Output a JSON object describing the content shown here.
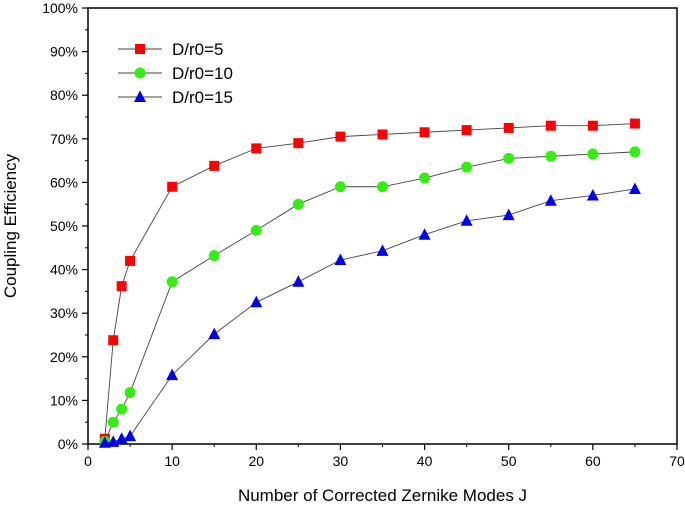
{
  "chart_data": {
    "type": "line",
    "xlabel": "Number of Corrected Zernike Modes J",
    "ylabel": "Coupling Efficiency",
    "xlim": [
      0,
      70
    ],
    "ylim": [
      0,
      100
    ],
    "xticks": [
      0,
      10,
      20,
      30,
      40,
      50,
      60,
      70
    ],
    "yticks": [
      0,
      10,
      20,
      30,
      40,
      50,
      60,
      70,
      80,
      90,
      100
    ],
    "ytick_suffix": "%",
    "grid": false,
    "legend_position": "top-left",
    "x": [
      2,
      3,
      4,
      5,
      10,
      15,
      20,
      25,
      30,
      35,
      40,
      45,
      50,
      55,
      60,
      65
    ],
    "series": [
      {
        "name": "D/r0=5",
        "marker": "square",
        "color": "#ff0000",
        "values": [
          1.2,
          23.8,
          36.2,
          42.0,
          59.0,
          63.8,
          67.8,
          69.0,
          70.5,
          71.0,
          71.5,
          72.0,
          72.5,
          73.0,
          73.0,
          73.5
        ]
      },
      {
        "name": "D/r0=10",
        "marker": "circle",
        "color": "#33ee11",
        "values": [
          0.6,
          5.0,
          8.0,
          11.8,
          37.2,
          43.2,
          49.0,
          55.0,
          59.0,
          59.0,
          61.0,
          63.5,
          65.5,
          66.0,
          66.5,
          67.0
        ]
      },
      {
        "name": "D/r0=15",
        "marker": "triangle",
        "color": "#0000ee",
        "values": [
          0.3,
          0.5,
          1.2,
          1.8,
          15.8,
          25.2,
          32.5,
          37.2,
          42.2,
          44.3,
          48.0,
          51.2,
          52.5,
          55.8,
          57.0,
          58.5
        ]
      }
    ]
  }
}
